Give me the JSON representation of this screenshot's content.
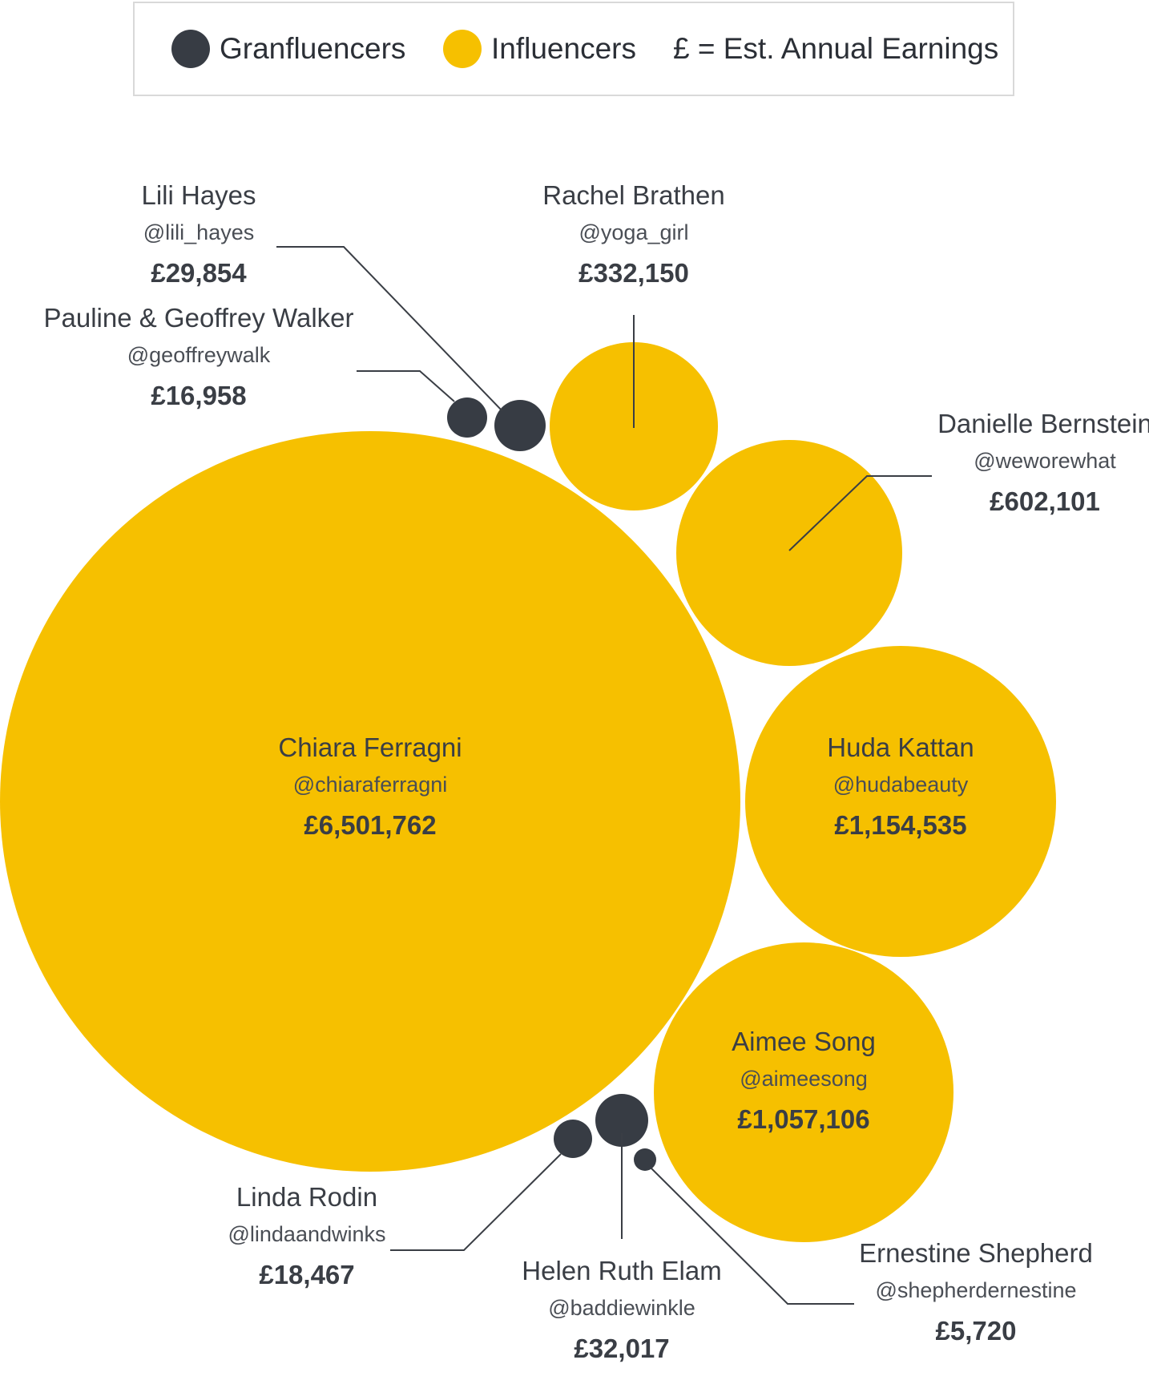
{
  "legend": {
    "granfluencers_label": "Granfluencers",
    "influencers_label": "Influencers",
    "earnings_note": "£ = Est. Annual Earnings"
  },
  "colors": {
    "granfluencer": "#373c44",
    "influencer": "#f6c000",
    "line": "#3a3e45"
  },
  "chart_data": {
    "type": "bubble",
    "value_unit": "£ est. annual earnings",
    "series": [
      {
        "name": "Granfluencers",
        "color": "#373c44"
      },
      {
        "name": "Influencers",
        "color": "#f6c000"
      }
    ],
    "points": [
      {
        "name": "Chiara Ferragni",
        "handle": "@chiaraferragni",
        "value": 6501762,
        "label": "£6,501,762",
        "group": "Influencers"
      },
      {
        "name": "Huda Kattan",
        "handle": "@hudabeauty",
        "value": 1154535,
        "label": "£1,154,535",
        "group": "Influencers"
      },
      {
        "name": "Aimee Song",
        "handle": "@aimeesong",
        "value": 1057106,
        "label": "£1,057,106",
        "group": "Influencers"
      },
      {
        "name": "Danielle Bernstein",
        "handle": "@weworewhat",
        "value": 602101,
        "label": "£602,101",
        "group": "Influencers"
      },
      {
        "name": "Rachel Brathen",
        "handle": "@yoga_girl",
        "value": 332150,
        "label": "£332,150",
        "group": "Influencers"
      },
      {
        "name": "Helen Ruth Elam",
        "handle": "@baddiewinkle",
        "value": 32017,
        "label": "£32,017",
        "group": "Granfluencers"
      },
      {
        "name": "Lili Hayes",
        "handle": "@lili_hayes",
        "value": 29854,
        "label": "£29,854",
        "group": "Granfluencers"
      },
      {
        "name": "Linda Rodin",
        "handle": "@lindaandwinks",
        "value": 18467,
        "label": "£18,467",
        "group": "Granfluencers"
      },
      {
        "name": "Pauline & Geoffrey Walker",
        "handle": "@geoffreywalk",
        "value": 16958,
        "label": "£16,958",
        "group": "Granfluencers"
      },
      {
        "name": "Ernestine Shepherd",
        "handle": "@shepherdernestine",
        "value": 5720,
        "label": "£5,720",
        "group": "Granfluencers"
      }
    ]
  }
}
